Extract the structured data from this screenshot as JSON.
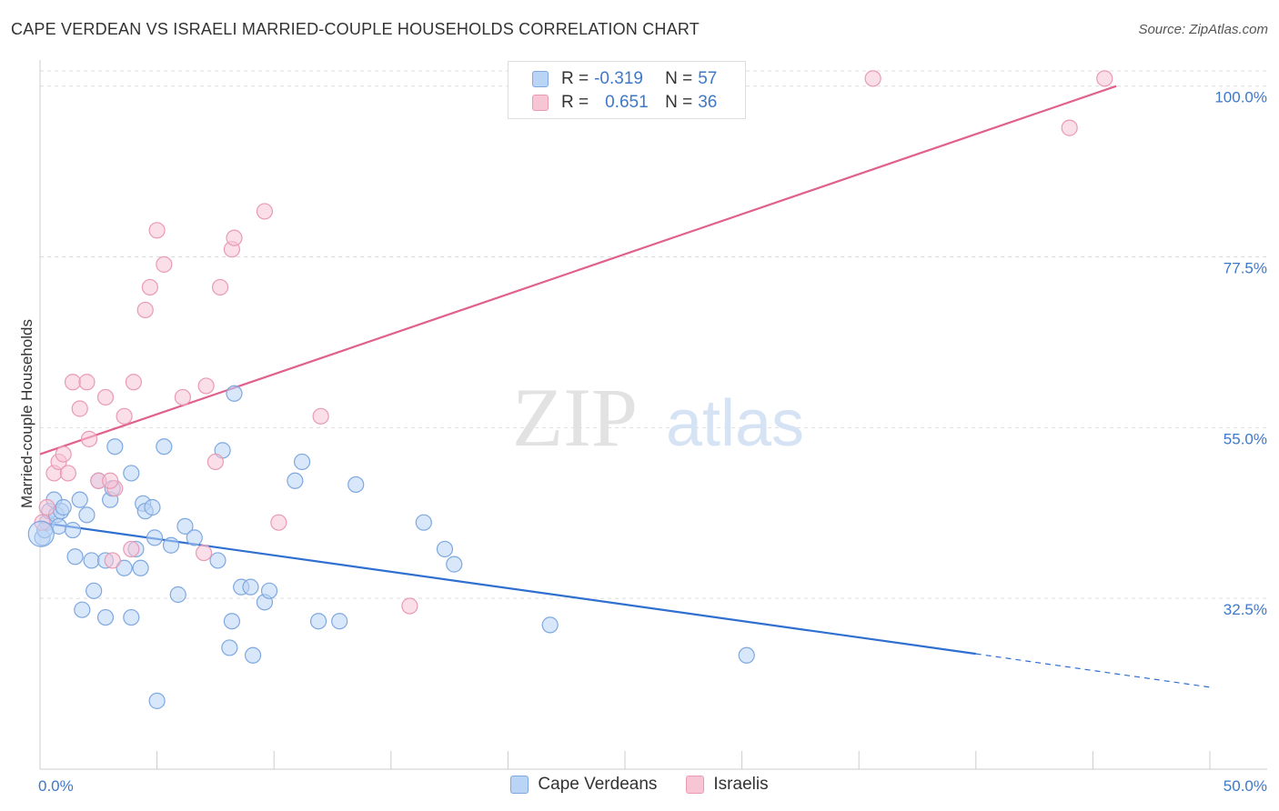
{
  "title": "CAPE VERDEAN VS ISRAELI MARRIED-COUPLE HOUSEHOLDS CORRELATION CHART",
  "source": "Source: ZipAtlas.com",
  "watermark": {
    "zip": "ZIP",
    "atlas": "atlas"
  },
  "legend_top": {
    "rows": [
      {
        "r_label": "R =",
        "r_value": "-0.319",
        "n_label": "N =",
        "n_value": "57"
      },
      {
        "r_label": "R =",
        "r_value": "0.651",
        "n_label": "N =",
        "n_value": "36"
      }
    ]
  },
  "colors": {
    "blue_fill": "#b9d4f5",
    "blue_stroke": "#7ea8df",
    "blue_line": "#2f6fd0",
    "pink_fill": "#f8c5d5",
    "pink_stroke": "#e99ab4",
    "pink_line": "#e0608e",
    "tick_label": "#3f78c9",
    "grid": "#dddddd"
  },
  "chart_data": {
    "type": "scatter",
    "title": "CAPE VERDEAN VS ISRAELI MARRIED-COUPLE HOUSEHOLDS CORRELATION CHART",
    "xlabel": "",
    "ylabel": "Married-couple Households",
    "xlim": [
      0,
      50
    ],
    "ylim": [
      10,
      102
    ],
    "x_tick_labels": [
      "0.0%",
      "50.0%"
    ],
    "y_ticks": [
      32.5,
      55.0,
      77.5,
      100.0
    ],
    "y_tick_labels": [
      "32.5%",
      "55.0%",
      "77.5%",
      "100.0%"
    ],
    "legend": [
      "Cape Verdeans",
      "Israelis"
    ],
    "series": [
      {
        "name": "Cape Verdeans",
        "r": -0.319,
        "n": 57,
        "trend": {
          "x0": 0,
          "y0": 42.5,
          "x1": 40,
          "y1": 25.2,
          "dash_x1": 50,
          "dash_y1": 20.8
        },
        "points": [
          [
            0.1,
            40.5
          ],
          [
            0.3,
            42.5
          ],
          [
            0.4,
            44.0
          ],
          [
            0.6,
            45.5
          ],
          [
            0.7,
            43.5
          ],
          [
            0.8,
            42.0
          ],
          [
            0.9,
            44.0
          ],
          [
            1.0,
            44.5
          ],
          [
            1.4,
            41.5
          ],
          [
            1.5,
            38.0
          ],
          [
            1.7,
            45.5
          ],
          [
            1.8,
            31.0
          ],
          [
            2.0,
            43.5
          ],
          [
            2.2,
            37.5
          ],
          [
            2.3,
            33.5
          ],
          [
            2.5,
            48.0
          ],
          [
            2.8,
            37.5
          ],
          [
            2.8,
            30.0
          ],
          [
            3.0,
            45.5
          ],
          [
            3.1,
            47.0
          ],
          [
            3.2,
            52.5
          ],
          [
            3.6,
            36.5
          ],
          [
            3.9,
            49.0
          ],
          [
            3.9,
            30.0
          ],
          [
            4.1,
            39.0
          ],
          [
            4.3,
            36.5
          ],
          [
            4.4,
            45.0
          ],
          [
            4.5,
            44.0
          ],
          [
            4.8,
            44.5
          ],
          [
            4.9,
            40.5
          ],
          [
            5.0,
            19.0
          ],
          [
            5.3,
            52.5
          ],
          [
            5.6,
            39.5
          ],
          [
            5.9,
            33.0
          ],
          [
            6.2,
            42.0
          ],
          [
            6.6,
            40.5
          ],
          [
            7.6,
            37.5
          ],
          [
            7.8,
            52.0
          ],
          [
            8.1,
            26.0
          ],
          [
            8.2,
            29.5
          ],
          [
            8.3,
            59.5
          ],
          [
            8.6,
            34.0
          ],
          [
            9.0,
            34.0
          ],
          [
            9.1,
            25.0
          ],
          [
            9.6,
            32.0
          ],
          [
            9.8,
            33.5
          ],
          [
            10.9,
            48.0
          ],
          [
            11.2,
            50.5
          ],
          [
            11.9,
            29.5
          ],
          [
            12.8,
            29.5
          ],
          [
            13.5,
            47.5
          ],
          [
            16.4,
            42.5
          ],
          [
            17.3,
            39.0
          ],
          [
            17.7,
            37.0
          ],
          [
            21.8,
            29.0
          ],
          [
            30.2,
            25.0
          ],
          [
            0.2,
            41.5
          ]
        ]
      },
      {
        "name": "Israelis",
        "r": 0.651,
        "n": 36,
        "trend": {
          "x0": 0,
          "y0": 51.5,
          "x1": 46,
          "y1": 100.0
        },
        "points": [
          [
            0.1,
            42.5
          ],
          [
            0.3,
            44.5
          ],
          [
            0.6,
            49.0
          ],
          [
            0.8,
            50.5
          ],
          [
            1.0,
            51.5
          ],
          [
            1.2,
            49.0
          ],
          [
            1.4,
            61.0
          ],
          [
            1.7,
            57.5
          ],
          [
            2.0,
            61.0
          ],
          [
            2.1,
            53.5
          ],
          [
            2.5,
            48.0
          ],
          [
            2.8,
            59.0
          ],
          [
            3.1,
            37.5
          ],
          [
            3.2,
            47.0
          ],
          [
            3.6,
            56.5
          ],
          [
            3.9,
            39.0
          ],
          [
            4.0,
            61.0
          ],
          [
            4.5,
            70.5
          ],
          [
            4.7,
            73.5
          ],
          [
            5.0,
            81.0
          ],
          [
            5.3,
            76.5
          ],
          [
            6.1,
            59.0
          ],
          [
            7.0,
            38.5
          ],
          [
            7.1,
            60.5
          ],
          [
            7.5,
            50.5
          ],
          [
            7.7,
            73.5
          ],
          [
            8.2,
            78.5
          ],
          [
            8.3,
            80.0
          ],
          [
            9.6,
            83.5
          ],
          [
            10.2,
            42.5
          ],
          [
            12.0,
            56.5
          ],
          [
            15.8,
            31.5
          ],
          [
            35.6,
            101.0
          ],
          [
            44.0,
            94.5
          ],
          [
            45.5,
            101.0
          ],
          [
            3.0,
            48.0
          ]
        ]
      }
    ]
  }
}
